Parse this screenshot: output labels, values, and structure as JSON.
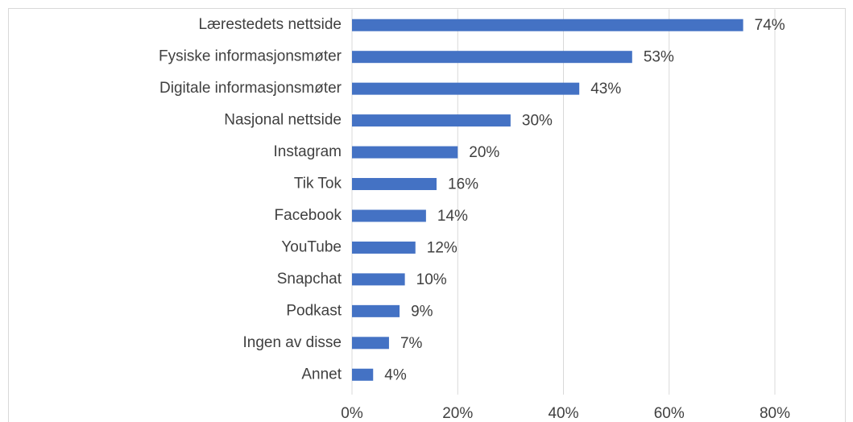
{
  "chart_data": {
    "type": "bar",
    "orientation": "horizontal",
    "categories": [
      "Lærestedets nettside",
      "Fysiske informasjonsmøter",
      "Digitale informasjonsmøter",
      "Nasjonal nettside",
      "Instagram",
      "Tik Tok",
      "Facebook",
      "YouTube",
      "Snapchat",
      "Podkast",
      "Ingen av disse",
      "Annet"
    ],
    "values": [
      74,
      53,
      43,
      30,
      20,
      16,
      14,
      12,
      10,
      9,
      7,
      4
    ],
    "value_labels": [
      "74%",
      "53%",
      "43%",
      "30%",
      "20%",
      "16%",
      "14%",
      "12%",
      "10%",
      "9%",
      "7%",
      "4%"
    ],
    "color": "#4472c4",
    "xlim": [
      0,
      80
    ],
    "xticks": [
      {
        "value": 0,
        "label": "0%"
      },
      {
        "value": 20,
        "label": "20%"
      },
      {
        "value": 40,
        "label": "40%"
      },
      {
        "value": 60,
        "label": "60%"
      },
      {
        "value": 80,
        "label": "80%"
      }
    ],
    "grid": true
  }
}
